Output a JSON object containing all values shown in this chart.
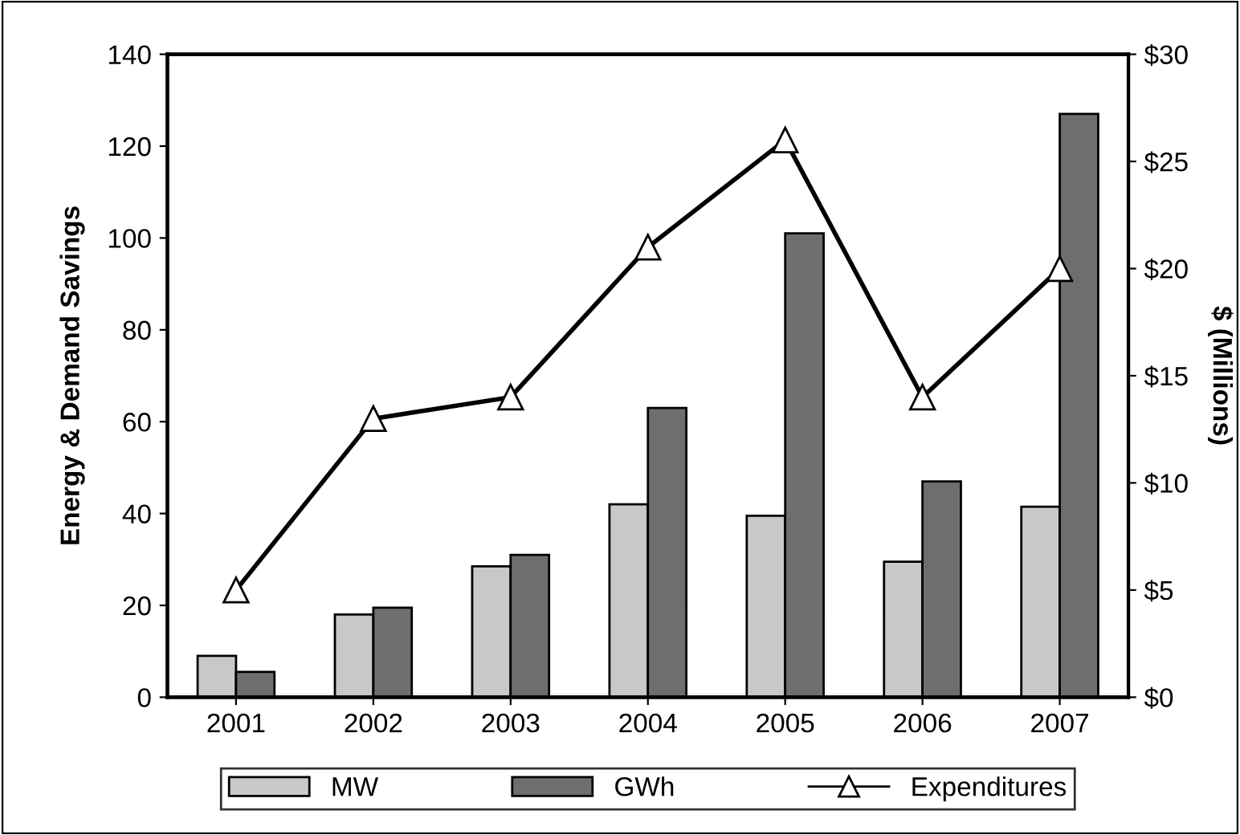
{
  "chart_data": {
    "type": "bar",
    "ylabel": "Energy & Demand Savings",
    "y2label": "$ (Millions)",
    "categories": [
      "2001",
      "2002",
      "2003",
      "2004",
      "2005",
      "2006",
      "2007"
    ],
    "series": [
      {
        "name": "MW",
        "color": "#c8c8c8",
        "values": [
          9,
          18,
          28.5,
          42,
          39.5,
          29.5,
          41.5
        ]
      },
      {
        "name": "GWh",
        "color": "#6e6e6e",
        "values": [
          5.5,
          19.5,
          31,
          63,
          101,
          47,
          127
        ]
      },
      {
        "name": "Expenditures",
        "type": "line",
        "axis": "y2",
        "color": "#000000",
        "marker": "triangle",
        "values": [
          5,
          13,
          14,
          21,
          26,
          14,
          20
        ]
      }
    ],
    "ylim": [
      0,
      140
    ],
    "yticks": [
      0,
      20,
      40,
      60,
      80,
      100,
      120,
      140
    ],
    "y2lim": [
      0,
      30
    ],
    "y2ticks": [
      {
        "value": 0,
        "label": "$0"
      },
      {
        "value": 5,
        "label": "$5"
      },
      {
        "value": 10,
        "label": "$10"
      },
      {
        "value": 15,
        "label": "$15"
      },
      {
        "value": 20,
        "label": "$20"
      },
      {
        "value": 25,
        "label": "$25"
      },
      {
        "value": 30,
        "label": "$30"
      }
    ],
    "grid": false,
    "legend": "bottom"
  }
}
